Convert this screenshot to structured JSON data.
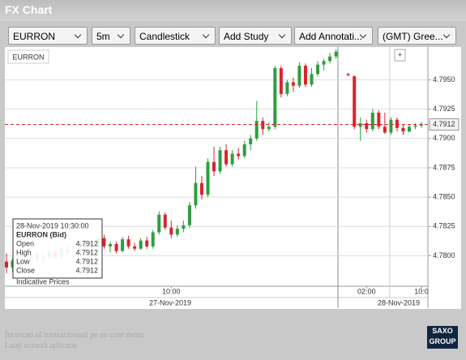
{
  "header": {
    "title": "FX Chart"
  },
  "toolbar": {
    "instrument": "EURRON",
    "interval": "5m",
    "chart_style": "Candlestick",
    "study": "Add Study",
    "annotation": "Add Annotati...",
    "timezone": "(GMT) Gree..."
  },
  "symbol_label": "EURRON",
  "zoom_button": "+",
  "chart_data": {
    "type": "candlestick",
    "up_color": "#2e9e3e",
    "down_color": "#d9232e",
    "categories": [
      null,
      null,
      null,
      null,
      null,
      null,
      null,
      null,
      null,
      null,
      null,
      null,
      null,
      null,
      null,
      null,
      null,
      null,
      null,
      null,
      null,
      null,
      null,
      null,
      null,
      null,
      null,
      "10:00",
      null,
      null,
      null,
      null,
      null,
      null,
      null,
      null,
      null,
      null,
      null,
      null,
      null,
      null,
      null,
      null,
      null,
      null,
      null,
      null,
      null,
      null,
      null,
      null,
      null,
      null,
      null,
      null,
      null,
      null,
      null,
      "02:00",
      null,
      null,
      null,
      null,
      null,
      null,
      null,
      null,
      "10:0"
    ],
    "open": [
      4.7795,
      4.779,
      4.7796,
      4.7793,
      4.7795,
      4.7801,
      4.7797,
      4.7799,
      4.7803,
      4.7799,
      4.7806,
      4.7803,
      4.7804,
      4.781,
      4.7805,
      4.7807,
      4.7815,
      4.7808,
      4.781,
      4.7804,
      4.7814,
      4.7808,
      4.7806,
      4.7813,
      4.7808,
      4.782,
      4.7835,
      4.7824,
      4.7818,
      4.7823,
      4.7826,
      4.7843,
      4.7862,
      4.7852,
      4.788,
      4.7872,
      4.789,
      4.7878,
      4.7887,
      4.7885,
      4.7895,
      4.79,
      4.7915,
      4.7908,
      4.791,
      4.796,
      4.7938,
      4.7948,
      4.7945,
      4.7962,
      4.7946,
      4.7955,
      4.7963,
      4.7966,
      4.797,
      null,
      4.7955,
      4.7953,
      4.791,
      4.7913,
      4.7908,
      4.7922,
      4.791,
      4.7905,
      4.7916,
      4.7909,
      4.7906,
      4.791,
      4.7911
    ],
    "high": [
      4.7802,
      4.7798,
      4.78,
      4.7797,
      4.7804,
      4.7803,
      4.7802,
      4.7806,
      4.7805,
      4.7808,
      4.781,
      4.7807,
      4.7812,
      4.7813,
      4.7809,
      4.7817,
      4.7818,
      4.7812,
      4.7812,
      4.7816,
      4.7817,
      4.7811,
      4.7815,
      4.7816,
      4.7822,
      4.7838,
      4.7837,
      4.783,
      4.7826,
      4.783,
      4.7846,
      4.7876,
      4.7868,
      4.7883,
      4.7893,
      4.7893,
      4.7895,
      4.789,
      4.7892,
      4.7898,
      4.7903,
      4.7932,
      4.7918,
      4.7914,
      4.7962,
      4.7962,
      4.795,
      4.7952,
      4.7965,
      4.7964,
      4.796,
      4.7966,
      4.7968,
      4.7973,
      4.7976,
      null,
      4.7956,
      4.7954,
      4.7918,
      4.7916,
      4.7925,
      4.7924,
      4.7922,
      4.7918,
      4.7918,
      4.7912,
      4.7912,
      4.7913,
      4.7914
    ],
    "low": [
      4.7785,
      4.7786,
      4.779,
      4.7788,
      4.7792,
      4.7795,
      4.7794,
      4.7796,
      4.7797,
      4.7797,
      4.7801,
      4.7798,
      4.7802,
      4.7803,
      4.78,
      4.7805,
      4.7806,
      4.7803,
      4.7802,
      4.7803,
      4.7806,
      4.7804,
      4.7805,
      4.7806,
      4.7806,
      4.7818,
      4.7822,
      4.7815,
      4.7816,
      4.782,
      4.7824,
      4.784,
      4.7848,
      4.785,
      4.7868,
      4.787,
      4.7876,
      4.7876,
      4.7882,
      4.7883,
      4.789,
      4.7898,
      4.7903,
      4.7906,
      4.7908,
      4.7935,
      4.7936,
      4.794,
      4.7943,
      4.7944,
      4.7944,
      4.7953,
      4.7958,
      4.7964,
      4.7968,
      null,
      4.7953,
      4.7908,
      4.7898,
      4.7905,
      4.7906,
      4.7908,
      4.7904,
      4.7903,
      4.7906,
      4.7903,
      4.7905,
      4.7908,
      4.7909
    ],
    "close": [
      4.779,
      4.7796,
      4.7793,
      4.7795,
      4.7801,
      4.7797,
      4.7799,
      4.7803,
      4.7799,
      4.7806,
      4.7803,
      4.7804,
      4.781,
      4.7805,
      4.7807,
      4.7815,
      4.7808,
      4.781,
      4.7804,
      4.7814,
      4.7808,
      4.7806,
      4.7813,
      4.7808,
      4.782,
      4.7835,
      4.7824,
      4.7818,
      4.7823,
      4.7826,
      4.7843,
      4.7862,
      4.7852,
      4.788,
      4.7872,
      4.789,
      4.7878,
      4.7887,
      4.7885,
      4.7895,
      4.79,
      4.7915,
      4.7908,
      4.791,
      4.796,
      4.7938,
      4.7948,
      4.7945,
      4.7962,
      4.7946,
      4.7955,
      4.7963,
      4.7966,
      4.797,
      4.7974,
      null,
      4.7954,
      4.791,
      4.7913,
      4.7908,
      4.7922,
      4.791,
      4.7905,
      4.7916,
      4.7909,
      4.7906,
      4.791,
      4.7911,
      4.7912
    ],
    "ylim": [
      4.7774,
      4.7978
    ],
    "yticks": [
      {
        "value": 4.78,
        "label": "4.7800"
      },
      {
        "value": 4.7825,
        "label": "4.7825"
      },
      {
        "value": 4.785,
        "label": "4.7850"
      },
      {
        "value": 4.7875,
        "label": "4.7875"
      },
      {
        "value": 4.79,
        "label": "4.7900"
      },
      {
        "value": 4.7925,
        "label": "4.7925"
      },
      {
        "value": 4.795,
        "label": "4.7950"
      }
    ],
    "grid": true,
    "last_price": {
      "value": 4.7912,
      "label": "4.7912"
    },
    "dates": [
      "27-Nov-2019",
      "28-Nov-2019"
    ]
  },
  "tooltip": {
    "time": "28-Nov-2019 10:30:00",
    "instrument": "EURRON (Bid)",
    "rows": [
      [
        "Open",
        "4.7912"
      ],
      [
        "High",
        "4.7912"
      ],
      [
        "Low",
        "4.7912"
      ],
      [
        "Close",
        "4.7912"
      ]
    ],
    "note": "Indicative Prices"
  },
  "footer": {
    "line1": "Încercați să tranzacționați pe un cont demo",
    "line2": "Luați această aplicație",
    "logo_top": "SAXO",
    "logo_bottom": "GROUP"
  }
}
